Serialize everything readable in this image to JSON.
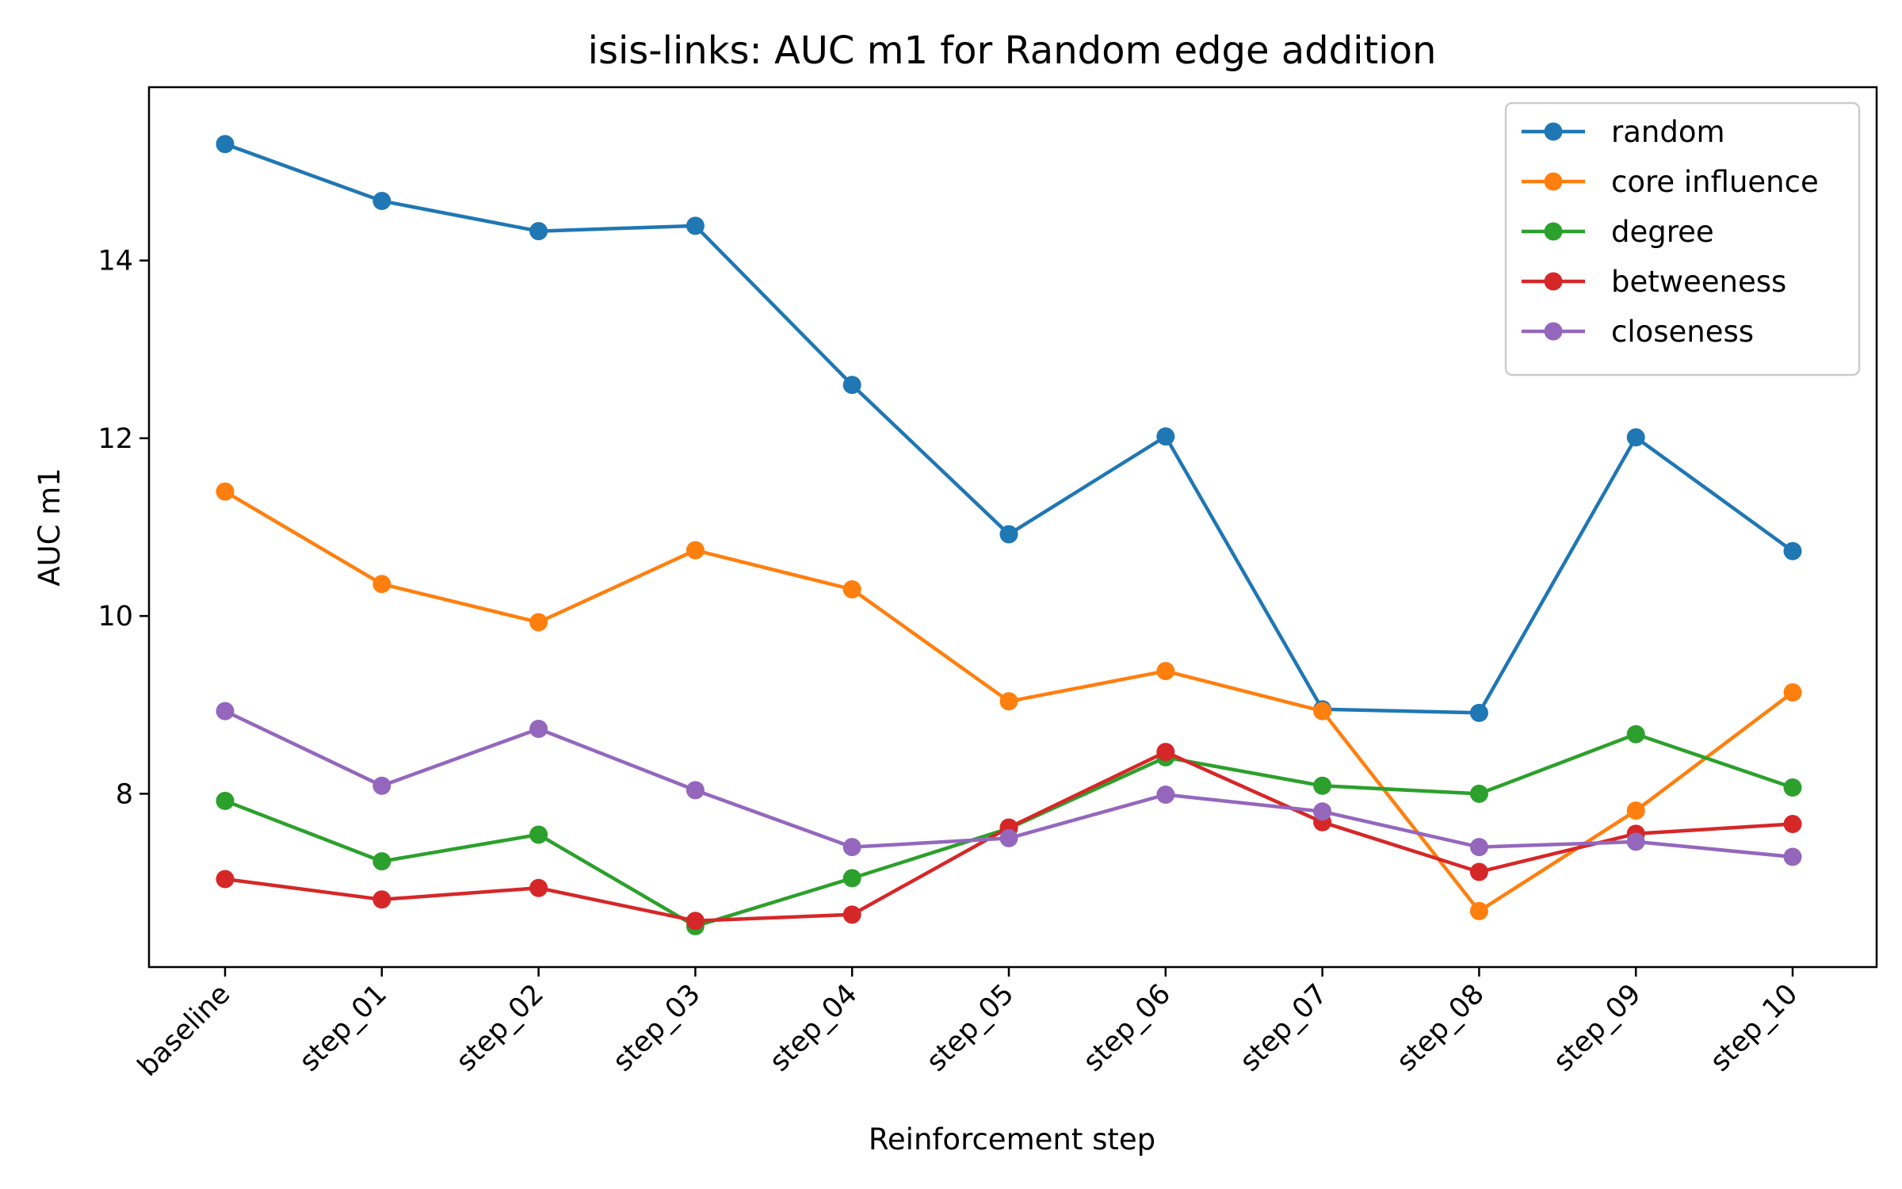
{
  "chart_data": {
    "type": "line",
    "title": "isis-links: AUC m1 for Random edge addition",
    "xlabel": "Reinforcement step",
    "ylabel": "AUC m1",
    "categories": [
      "baseline",
      "step_01",
      "step_02",
      "step_03",
      "step_04",
      "step_05",
      "step_06",
      "step_07",
      "step_08",
      "step_09",
      "step_10"
    ],
    "yticks": [
      8,
      10,
      12,
      14
    ],
    "ylim": [
      6.05,
      15.95
    ],
    "grid": false,
    "legend_position": "top-right",
    "series": [
      {
        "name": "random",
        "color": "#1f77b4",
        "values": [
          15.31,
          14.67,
          14.33,
          14.39,
          12.6,
          10.92,
          12.02,
          8.95,
          8.91,
          12.01,
          10.73
        ]
      },
      {
        "name": "core influence",
        "color": "#ff7f0e",
        "values": [
          11.4,
          10.36,
          9.93,
          10.74,
          10.3,
          9.04,
          9.38,
          8.93,
          6.68,
          7.81,
          9.14
        ]
      },
      {
        "name": "degree",
        "color": "#2ca02c",
        "values": [
          7.92,
          7.24,
          7.54,
          6.51,
          7.05,
          7.61,
          8.41,
          8.09,
          8.0,
          8.67,
          8.07
        ]
      },
      {
        "name": "betweeness",
        "color": "#d62728",
        "values": [
          7.04,
          6.81,
          6.94,
          6.57,
          6.64,
          7.62,
          8.47,
          7.68,
          7.12,
          7.55,
          7.66
        ]
      },
      {
        "name": "closeness",
        "color": "#9467bd",
        "values": [
          8.93,
          8.09,
          8.73,
          8.04,
          7.4,
          7.5,
          7.99,
          7.8,
          7.4,
          7.46,
          7.29
        ]
      }
    ]
  }
}
